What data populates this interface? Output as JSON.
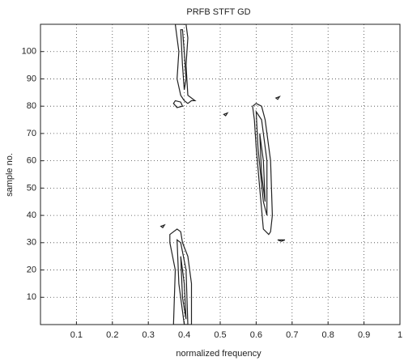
{
  "chart_data": {
    "type": "contour",
    "title": "PRFB STFT GD",
    "x_label": "normalized frequency",
    "y_label": "sample no.",
    "xlim": [
      0,
      1
    ],
    "ylim": [
      0,
      110
    ],
    "xticks": [
      0.1,
      0.2,
      0.3,
      0.4,
      0.5,
      0.6,
      0.7,
      0.8,
      0.9,
      1
    ],
    "yticks": [
      10,
      20,
      30,
      40,
      50,
      60,
      70,
      80,
      90,
      100
    ],
    "grid": true,
    "color": "#222222",
    "contours": [
      {
        "x": [
          0.375,
          0.385,
          0.38,
          0.39,
          0.4,
          0.41,
          0.42,
          0.43,
          0.41,
          0.405,
          0.41,
          0.405
        ],
        "y": [
          110,
          100,
          90,
          84,
          82,
          81,
          82,
          82,
          84,
          95,
          105,
          110
        ]
      },
      {
        "x": [
          0.39,
          0.395,
          0.4,
          0.405,
          0.4,
          0.395
        ],
        "y": [
          108,
          95,
          86,
          90,
          100,
          108
        ]
      },
      {
        "x": [
          0.37,
          0.38,
          0.395,
          0.39,
          0.375
        ],
        "y": [
          81,
          79.5,
          80,
          81.5,
          82
        ]
      },
      {
        "x": [
          0.59,
          0.6,
          0.615,
          0.625,
          0.64,
          0.645,
          0.64,
          0.635,
          0.62,
          0.61,
          0.6,
          0.595
        ],
        "y": [
          80,
          81,
          80,
          75,
          60,
          40,
          34,
          33,
          35,
          50,
          65,
          75
        ]
      },
      {
        "x": [
          0.6,
          0.615,
          0.63,
          0.63,
          0.62,
          0.605
        ],
        "y": [
          78,
          75,
          60,
          40,
          45,
          65
        ]
      },
      {
        "x": [
          0.61,
          0.62,
          0.625,
          0.615
        ],
        "y": [
          70,
          60,
          45,
          55
        ]
      },
      {
        "x": [
          0.36,
          0.38,
          0.39,
          0.395,
          0.41,
          0.42,
          0.42,
          0.41,
          0.37,
          0.375,
          0.36
        ],
        "y": [
          33,
          35,
          34,
          30,
          25,
          15,
          0,
          0,
          0,
          20,
          30
        ]
      },
      {
        "x": [
          0.38,
          0.39,
          0.405,
          0.41,
          0.4,
          0.385
        ],
        "y": [
          31,
          30,
          20,
          0,
          0,
          15
        ]
      },
      {
        "x": [
          0.39,
          0.4,
          0.405,
          0.395
        ],
        "y": [
          25,
          15,
          2,
          10
        ]
      },
      {
        "x": [
          0.51,
          0.52,
          0.515
        ],
        "y": [
          77,
          77.5,
          76.5
        ]
      },
      {
        "x": [
          0.655,
          0.665,
          0.66
        ],
        "y": [
          83,
          83.5,
          82.5
        ]
      },
      {
        "x": [
          0.66,
          0.68,
          0.67
        ],
        "y": [
          31,
          31,
          30.5
        ]
      },
      {
        "x": [
          0.335,
          0.345,
          0.34
        ],
        "y": [
          36,
          36.5,
          35.5
        ]
      }
    ]
  }
}
